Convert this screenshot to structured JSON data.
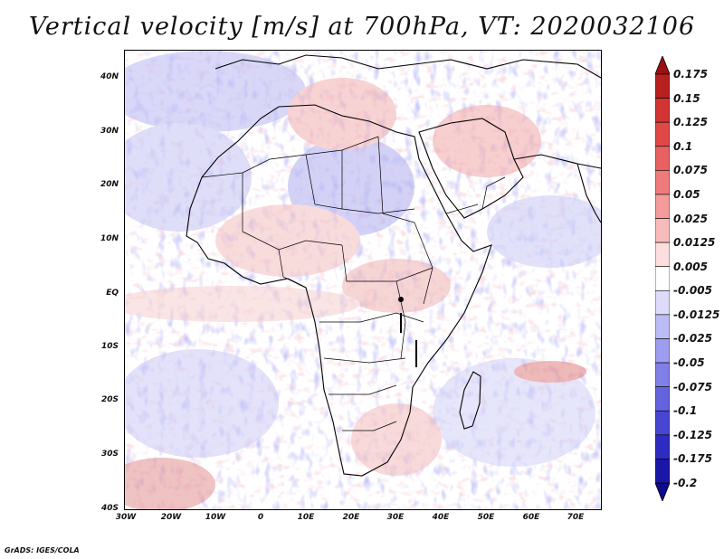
{
  "title": "Vertical velocity [m/s] at 700hPa, VT: 2020032106",
  "credit": "GrADS: IGES/COLA",
  "lat_labels": [
    "40N",
    "30N",
    "20N",
    "10N",
    "EQ",
    "10S",
    "20S",
    "30S",
    "40S"
  ],
  "lon_labels": [
    "30W",
    "20W",
    "10W",
    "0",
    "10E",
    "20E",
    "30E",
    "40E",
    "50E",
    "60E",
    "70E"
  ],
  "colorbar": {
    "labels": [
      "0.175",
      "0.15",
      "0.125",
      "0.1",
      "0.075",
      "0.05",
      "0.025",
      "0.0125",
      "0.005",
      "-0.005",
      "-0.0125",
      "-0.025",
      "-0.05",
      "-0.075",
      "-0.1",
      "-0.125",
      "-0.175",
      "-0.2"
    ],
    "colors": [
      "#9b1010",
      "#b81f1f",
      "#d23333",
      "#e04848",
      "#e86060",
      "#ef7a7a",
      "#f49a9a",
      "#f8bbbb",
      "#fcdede",
      "#ffffff",
      "#dcdcfa",
      "#bcbcf5",
      "#9d9cef",
      "#807fe8",
      "#6463de",
      "#4845d2",
      "#2e2bc0",
      "#1a16a8",
      "#0e0b8e"
    ]
  },
  "colors": {
    "coast": "#000000",
    "background": "#ffffff"
  }
}
